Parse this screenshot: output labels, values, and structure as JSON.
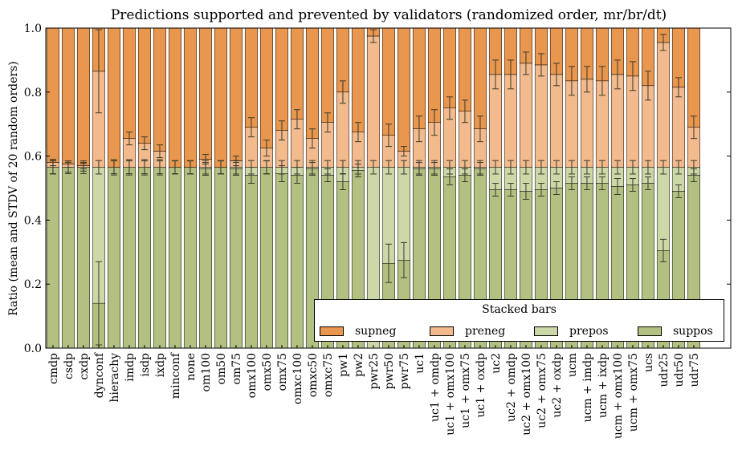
{
  "chart_data": {
    "type": "bar",
    "stacked": true,
    "title": "Predictions supported and prevented by validators (randomized order, mr/br/dt)",
    "ylabel": "Ratio (mean and STDV of 20 random orders)",
    "xlabel": "",
    "ylim": [
      0,
      1.0
    ],
    "yticks": [
      "0.0",
      "0.2",
      "0.4",
      "0.6",
      "0.8",
      "1.0"
    ],
    "grid": false,
    "legend": {
      "title": "Stacked bars",
      "placement": "lower-right",
      "entries": [
        "supneg",
        "preneg",
        "prepos",
        "suppos"
      ]
    },
    "colors": {
      "supneg": "#e9964e",
      "preneg": "#f3bb8d",
      "prepos": "#ccd8a8",
      "suppos": "#b2c182",
      "error": "#3a3a2a"
    },
    "categories": [
      "cmdp",
      "csdp",
      "cxdp",
      "dynconf",
      "hierachy",
      "imdp",
      "isdp",
      "ixdp",
      "minconf",
      "none",
      "om100",
      "om50",
      "om75",
      "omx100",
      "omx50",
      "omx75",
      "omxc100",
      "omxc50",
      "omxc75",
      "pw1",
      "pw2",
      "pwr25",
      "pwr50",
      "pwr75",
      "uc1",
      "uc1 + omdp",
      "uc1 + omx100",
      "uc1 + omx75",
      "uc1 + oxdp",
      "uc2",
      "uc2 + omdp",
      "uc2 + omx100",
      "uc2 + omx75",
      "uc2 + oxdp",
      "ucm",
      "ucm + imdp",
      "ucm + ixdp",
      "ucm + omx100",
      "ucm + omx75",
      "ucs",
      "udr25",
      "udr50",
      "udr75"
    ],
    "series": [
      {
        "name": "suppos",
        "values": [
          0.565,
          0.565,
          0.565,
          0.14,
          0.565,
          0.565,
          0.565,
          0.565,
          0.565,
          0.565,
          0.56,
          0.565,
          0.56,
          0.54,
          0.565,
          0.545,
          0.54,
          0.56,
          0.54,
          0.52,
          0.555,
          0.0,
          0.265,
          0.275,
          0.56,
          0.56,
          0.535,
          0.54,
          0.56,
          0.495,
          0.495,
          0.49,
          0.495,
          0.5,
          0.515,
          0.515,
          0.515,
          0.505,
          0.51,
          0.515,
          0.305,
          0.49,
          0.54
        ]
      },
      {
        "name": "prepos",
        "values": [
          0.0,
          0.0,
          0.0,
          0.425,
          0.0,
          0.0,
          0.0,
          0.0,
          0.0,
          0.0,
          0.005,
          0.0,
          0.005,
          0.025,
          0.0,
          0.02,
          0.025,
          0.005,
          0.025,
          0.045,
          0.01,
          0.565,
          0.3,
          0.29,
          0.005,
          0.005,
          0.03,
          0.025,
          0.005,
          0.07,
          0.07,
          0.075,
          0.07,
          0.065,
          0.05,
          0.05,
          0.05,
          0.06,
          0.055,
          0.05,
          0.26,
          0.075,
          0.025
        ]
      },
      {
        "name": "preneg",
        "values": [
          0.015,
          0.01,
          0.005,
          0.3,
          0.0,
          0.09,
          0.075,
          0.05,
          0.0,
          0.0,
          0.025,
          0.0,
          0.02,
          0.125,
          0.06,
          0.115,
          0.15,
          0.09,
          0.14,
          0.235,
          0.11,
          0.41,
          0.1,
          0.05,
          0.12,
          0.14,
          0.185,
          0.175,
          0.12,
          0.29,
          0.29,
          0.325,
          0.32,
          0.29,
          0.27,
          0.275,
          0.27,
          0.29,
          0.285,
          0.255,
          0.39,
          0.25,
          0.125
        ]
      },
      {
        "name": "supneg",
        "values": [
          0.42,
          0.425,
          0.43,
          0.135,
          0.435,
          0.345,
          0.36,
          0.385,
          0.435,
          0.435,
          0.41,
          0.435,
          0.415,
          0.31,
          0.375,
          0.32,
          0.285,
          0.345,
          0.295,
          0.2,
          0.325,
          0.025,
          0.335,
          0.385,
          0.315,
          0.295,
          0.25,
          0.26,
          0.315,
          0.145,
          0.145,
          0.11,
          0.115,
          0.145,
          0.165,
          0.16,
          0.165,
          0.145,
          0.15,
          0.18,
          0.045,
          0.185,
          0.31
        ]
      }
    ],
    "errors": {
      "suppos": [
        0.02,
        0.02,
        0.02,
        0.13,
        0.02,
        0.02,
        0.02,
        0.02,
        0.02,
        0.02,
        0.02,
        0.02,
        0.02,
        0.025,
        0.02,
        0.025,
        0.025,
        0.02,
        0.02,
        0.025,
        0.02,
        0.0,
        0.06,
        0.055,
        0.02,
        0.02,
        0.025,
        0.02,
        0.02,
        0.02,
        0.02,
        0.025,
        0.02,
        0.02,
        0.02,
        0.02,
        0.02,
        0.025,
        0.02,
        0.02,
        0.035,
        0.02,
        0.02
      ],
      "top_pos": [
        0.035,
        0.025,
        0.02,
        0.035,
        0.04,
        0.04,
        0.04,
        0.04,
        0.035,
        0.035,
        0.035,
        0.035,
        0.035,
        0.035,
        0.035,
        0.035,
        0.035,
        0.035,
        0.035,
        0.035,
        0.035,
        0.035,
        0.035,
        0.035,
        0.035,
        0.035,
        0.035,
        0.035,
        0.035,
        0.035,
        0.035,
        0.035,
        0.035,
        0.035,
        0.035,
        0.035,
        0.035,
        0.035,
        0.035,
        0.035,
        0.035,
        0.035,
        0.035
      ],
      "preneg_top": [
        0.01,
        0.01,
        0.01,
        0.13,
        0.0,
        0.02,
        0.02,
        0.02,
        0.0,
        0.0,
        0.015,
        0.0,
        0.015,
        0.03,
        0.025,
        0.03,
        0.03,
        0.03,
        0.03,
        0.035,
        0.03,
        0.02,
        0.035,
        0.015,
        0.04,
        0.04,
        0.035,
        0.035,
        0.04,
        0.045,
        0.045,
        0.035,
        0.035,
        0.035,
        0.045,
        0.04,
        0.045,
        0.045,
        0.045,
        0.045,
        0.025,
        0.03,
        0.035
      ]
    }
  }
}
